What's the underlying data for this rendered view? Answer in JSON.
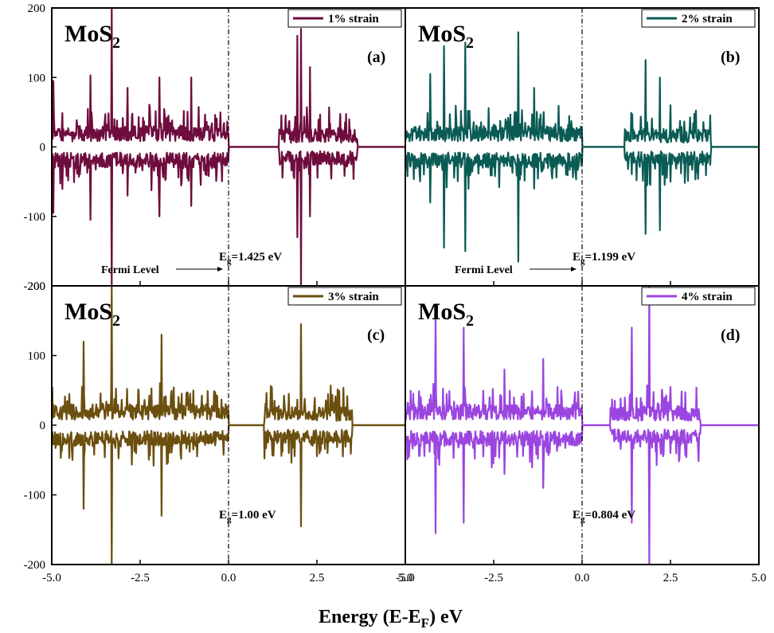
{
  "figure": {
    "xlabel": {
      "main": "Energy (E-E",
      "sub": "F",
      "tail": ") eV"
    },
    "fermi_arrow_label": "Fermi Level"
  },
  "chart_data": [
    {
      "type": "line",
      "panel": "(a)",
      "material": {
        "base": "MoS",
        "sub": "2"
      },
      "legend": "1% strain",
      "color": "#6e0d3d",
      "band_gap_label": {
        "prefix": "E",
        "sub": "g",
        "value": "=1.425 eV"
      },
      "band_gap_eV": 1.425,
      "gap": [
        0.0,
        1.425
      ],
      "conduction_extent": [
        1.425,
        3.65
      ],
      "fermi_level_eV": 0.0,
      "xlim": [
        -5.0,
        5.0
      ],
      "ylim": [
        -200,
        200
      ],
      "xticks": [
        "-5.0",
        "-2.5",
        "0.0",
        "2.5",
        "5.0"
      ],
      "yticks": [
        "200",
        "100",
        "0",
        "-100",
        "-200"
      ],
      "peaks": [
        {
          "x": -4.95,
          "up": 95,
          "down": -95
        },
        {
          "x": -3.9,
          "up": 103,
          "down": -105
        },
        {
          "x": -3.3,
          "up": 200,
          "down": -200
        },
        {
          "x": -2.85,
          "up": 85,
          "down": -70
        },
        {
          "x": -1.95,
          "up": 100,
          "down": -100
        },
        {
          "x": -1.05,
          "up": 100,
          "down": -85
        },
        {
          "x": 1.95,
          "up": 160,
          "down": -130
        },
        {
          "x": 2.05,
          "up": 170,
          "down": -200
        },
        {
          "x": 2.3,
          "up": 115,
          "down": -100
        }
      ]
    },
    {
      "type": "line",
      "panel": "(b)",
      "material": {
        "base": "MoS",
        "sub": "2"
      },
      "legend": "2% strain",
      "color": "#0b5b55",
      "band_gap_label": {
        "prefix": "E",
        "sub": "g",
        "value": "=1.199 eV"
      },
      "band_gap_eV": 1.199,
      "gap": [
        0.0,
        1.199
      ],
      "conduction_extent": [
        1.199,
        3.65
      ],
      "fermi_level_eV": 0.0,
      "xlim": [
        -5.0,
        5.0
      ],
      "ylim": [
        -200,
        200
      ],
      "xticks": [
        "-5.0",
        "-2.5",
        "0.0",
        "2.5",
        "5.0"
      ],
      "yticks": [],
      "peaks": [
        {
          "x": -4.3,
          "up": 105,
          "down": -80
        },
        {
          "x": -3.9,
          "up": 145,
          "down": -145
        },
        {
          "x": -3.3,
          "up": 150,
          "down": -150
        },
        {
          "x": -1.8,
          "up": 165,
          "down": -165
        },
        {
          "x": -1.35,
          "up": 85,
          "down": -60
        },
        {
          "x": 1.8,
          "up": 125,
          "down": -125
        },
        {
          "x": 2.2,
          "up": 100,
          "down": -120
        },
        {
          "x": 2.5,
          "up": 60,
          "down": -50
        }
      ]
    },
    {
      "type": "line",
      "panel": "(c)",
      "material": {
        "base": "MoS",
        "sub": "2"
      },
      "legend": "3% strain",
      "color": "#6b4f0f",
      "band_gap_label": {
        "prefix": "E",
        "sub": "g",
        "value": "=1.00 eV"
      },
      "band_gap_eV": 1.0,
      "gap": [
        0.0,
        1.0
      ],
      "conduction_extent": [
        1.0,
        3.5
      ],
      "fermi_level_eV": 0.0,
      "xlim": [
        -5.0,
        5.0
      ],
      "ylim": [
        -200,
        200
      ],
      "xticks": [
        "-5.0",
        "-2.5",
        "0.0",
        "2.5",
        "5.0"
      ],
      "yticks": [
        "200",
        "100",
        "0",
        "-100",
        "-200"
      ],
      "peaks": [
        {
          "x": -4.1,
          "up": 120,
          "down": -120
        },
        {
          "x": -3.3,
          "up": 200,
          "down": -200
        },
        {
          "x": -1.9,
          "up": 130,
          "down": -130
        },
        {
          "x": -1.0,
          "up": 50,
          "down": -35
        },
        {
          "x": 2.05,
          "up": 145,
          "down": -145
        },
        {
          "x": 1.7,
          "up": 45,
          "down": -40
        }
      ]
    },
    {
      "type": "line",
      "panel": "(d)",
      "material": {
        "base": "MoS",
        "sub": "2"
      },
      "legend": "4% strain",
      "color": "#9b45e0",
      "band_gap_label": {
        "prefix": "E",
        "sub": "g",
        "value": "=0.804 eV"
      },
      "band_gap_eV": 0.804,
      "gap": [
        0.0,
        0.804
      ],
      "conduction_extent": [
        0.804,
        3.35
      ],
      "fermi_level_eV": 0.0,
      "xlim": [
        -5.0,
        5.0
      ],
      "ylim": [
        -200,
        200
      ],
      "xticks": [
        "-5.0",
        "-2.5",
        "0.0",
        "2.5",
        "5.0"
      ],
      "yticks": [],
      "peaks": [
        {
          "x": -4.15,
          "up": 160,
          "down": -155
        },
        {
          "x": -3.35,
          "up": 140,
          "down": -140
        },
        {
          "x": -2.2,
          "up": 80,
          "down": -70
        },
        {
          "x": -1.1,
          "up": 95,
          "down": -90
        },
        {
          "x": 1.4,
          "up": 140,
          "down": -140
        },
        {
          "x": 1.9,
          "up": 200,
          "down": -200
        },
        {
          "x": 2.5,
          "up": 55,
          "down": -40
        }
      ]
    }
  ]
}
